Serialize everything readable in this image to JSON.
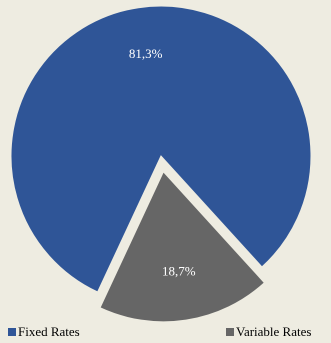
{
  "chart_data": {
    "type": "pie",
    "categories": [
      "Fixed Rates",
      "Variable Rates"
    ],
    "values": [
      81.3,
      18.7
    ],
    "value_labels": [
      "81,3%",
      "18,7%"
    ],
    "colors": [
      "#2f5597",
      "#666666"
    ],
    "exploded": [
      false,
      true
    ],
    "legend": "bottom"
  }
}
